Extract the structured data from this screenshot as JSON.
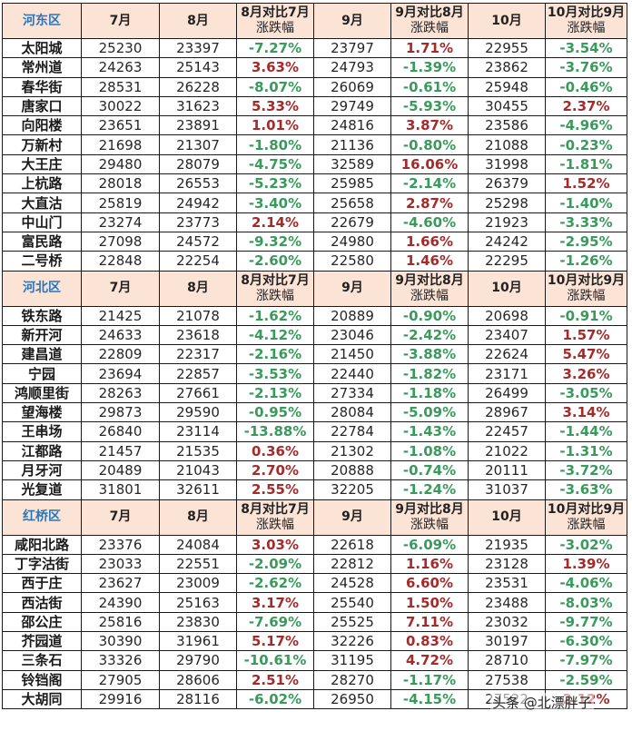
{
  "colors": {
    "header_bg": "#fbe3d6",
    "district_label": "#2e75b6",
    "up": "#a52a2a",
    "down": "#3a9a5c",
    "border": "#1a1a1a"
  },
  "headers": {
    "jul": "7月",
    "aug": "8月",
    "aug_vs_jul_l1": "8月对比7月",
    "aug_vs_jul_l2": "涨跌幅",
    "sep": "9月",
    "sep_vs_aug_l1": "9月对比8月",
    "sep_vs_aug_l2": "涨跌幅",
    "oct": "10月",
    "oct_vs_sep_l1": "10月对比9月",
    "oct_vs_sep_l2": "涨跌幅"
  },
  "sections": [
    {
      "district": "河东区",
      "rows": [
        {
          "name": "太阳城",
          "jul": "25230",
          "aug": "23397",
          "aug_pct": "-7.27%",
          "sep": "23797",
          "sep_pct": "1.71%",
          "oct": "22955",
          "oct_pct": "-3.54%"
        },
        {
          "name": "常州道",
          "jul": "24263",
          "aug": "25143",
          "aug_pct": "3.63%",
          "sep": "24793",
          "sep_pct": "-1.39%",
          "oct": "23862",
          "oct_pct": "-3.76%"
        },
        {
          "name": "春华街",
          "jul": "28531",
          "aug": "26228",
          "aug_pct": "-8.07%",
          "sep": "26069",
          "sep_pct": "-0.61%",
          "oct": "25948",
          "oct_pct": "-0.46%"
        },
        {
          "name": "唐家口",
          "jul": "30022",
          "aug": "31623",
          "aug_pct": "5.33%",
          "sep": "29749",
          "sep_pct": "-5.93%",
          "oct": "30455",
          "oct_pct": "2.37%"
        },
        {
          "name": "向阳楼",
          "jul": "23651",
          "aug": "23891",
          "aug_pct": "1.01%",
          "sep": "24816",
          "sep_pct": "3.87%",
          "oct": "23586",
          "oct_pct": "-4.96%"
        },
        {
          "name": "万新村",
          "jul": "21698",
          "aug": "21307",
          "aug_pct": "-1.80%",
          "sep": "21136",
          "sep_pct": "-0.80%",
          "oct": "21088",
          "oct_pct": "-0.23%"
        },
        {
          "name": "大王庄",
          "jul": "29480",
          "aug": "28079",
          "aug_pct": "-4.75%",
          "sep": "32589",
          "sep_pct": "16.06%",
          "oct": "31998",
          "oct_pct": "-1.81%"
        },
        {
          "name": "上杭路",
          "jul": "28018",
          "aug": "26553",
          "aug_pct": "-5.23%",
          "sep": "25985",
          "sep_pct": "-2.14%",
          "oct": "26379",
          "oct_pct": "1.52%"
        },
        {
          "name": "大直沽",
          "jul": "25819",
          "aug": "24942",
          "aug_pct": "-3.40%",
          "sep": "25658",
          "sep_pct": "2.87%",
          "oct": "25298",
          "oct_pct": "-1.40%"
        },
        {
          "name": "中山门",
          "jul": "23274",
          "aug": "23773",
          "aug_pct": "2.14%",
          "sep": "22679",
          "sep_pct": "-4.60%",
          "oct": "21923",
          "oct_pct": "-3.33%"
        },
        {
          "name": "富民路",
          "jul": "27098",
          "aug": "24572",
          "aug_pct": "-9.32%",
          "sep": "24980",
          "sep_pct": "1.66%",
          "oct": "24242",
          "oct_pct": "-2.95%"
        },
        {
          "name": "二号桥",
          "jul": "22848",
          "aug": "22254",
          "aug_pct": "-2.60%",
          "sep": "22580",
          "sep_pct": "1.46%",
          "oct": "22295",
          "oct_pct": "-1.26%"
        }
      ]
    },
    {
      "district": "河北区",
      "rows": [
        {
          "name": "铁东路",
          "jul": "21425",
          "aug": "21078",
          "aug_pct": "-1.62%",
          "sep": "20889",
          "sep_pct": "-0.90%",
          "oct": "20698",
          "oct_pct": "-0.91%"
        },
        {
          "name": "新开河",
          "jul": "24633",
          "aug": "23618",
          "aug_pct": "-4.12%",
          "sep": "23046",
          "sep_pct": "-2.42%",
          "oct": "23407",
          "oct_pct": "1.57%"
        },
        {
          "name": "建昌道",
          "jul": "22809",
          "aug": "22317",
          "aug_pct": "-2.16%",
          "sep": "21450",
          "sep_pct": "-3.88%",
          "oct": "22624",
          "oct_pct": "5.47%"
        },
        {
          "name": "宁园",
          "jul": "23694",
          "aug": "22857",
          "aug_pct": "-3.53%",
          "sep": "22440",
          "sep_pct": "-1.82%",
          "oct": "23171",
          "oct_pct": "3.26%"
        },
        {
          "name": "鸿顺里街",
          "jul": "28263",
          "aug": "27661",
          "aug_pct": "-2.13%",
          "sep": "27334",
          "sep_pct": "-1.18%",
          "oct": "26499",
          "oct_pct": "-3.05%"
        },
        {
          "name": "望海楼",
          "jul": "29873",
          "aug": "29590",
          "aug_pct": "-0.95%",
          "sep": "28084",
          "sep_pct": "-5.09%",
          "oct": "28967",
          "oct_pct": "3.14%"
        },
        {
          "name": "王串场",
          "jul": "26840",
          "aug": "23114",
          "aug_pct": "-13.88%",
          "sep": "22784",
          "sep_pct": "-1.43%",
          "oct": "22457",
          "oct_pct": "-1.44%"
        },
        {
          "name": "江都路",
          "jul": "21457",
          "aug": "21535",
          "aug_pct": "0.36%",
          "sep": "21302",
          "sep_pct": "-1.08%",
          "oct": "21022",
          "oct_pct": "-1.31%"
        },
        {
          "name": "月牙河",
          "jul": "20489",
          "aug": "21043",
          "aug_pct": "2.70%",
          "sep": "20888",
          "sep_pct": "-0.74%",
          "oct": "20111",
          "oct_pct": "-3.72%"
        },
        {
          "name": "光复道",
          "jul": "31801",
          "aug": "32611",
          "aug_pct": "2.55%",
          "sep": "32205",
          "sep_pct": "-1.24%",
          "oct": "31037",
          "oct_pct": "-3.63%"
        }
      ]
    },
    {
      "district": "红桥区",
      "rows": [
        {
          "name": "咸阳北路",
          "jul": "23376",
          "aug": "24084",
          "aug_pct": "3.03%",
          "sep": "22618",
          "sep_pct": "-6.09%",
          "oct": "21935",
          "oct_pct": "-3.02%"
        },
        {
          "name": "丁字沽街",
          "jul": "23033",
          "aug": "22551",
          "aug_pct": "-2.09%",
          "sep": "22812",
          "sep_pct": "1.16%",
          "oct": "23128",
          "oct_pct": "1.39%"
        },
        {
          "name": "西于庄",
          "jul": "23627",
          "aug": "23009",
          "aug_pct": "-2.62%",
          "sep": "24528",
          "sep_pct": "6.60%",
          "oct": "23531",
          "oct_pct": "-4.06%"
        },
        {
          "name": "西沽街",
          "jul": "24390",
          "aug": "25163",
          "aug_pct": "3.17%",
          "sep": "25540",
          "sep_pct": "1.50%",
          "oct": "23488",
          "oct_pct": "-8.03%"
        },
        {
          "name": "邵公庄",
          "jul": "25816",
          "aug": "23830",
          "aug_pct": "-7.69%",
          "sep": "25525",
          "sep_pct": "7.11%",
          "oct": "23032",
          "oct_pct": "-9.77%"
        },
        {
          "name": "芥园道",
          "jul": "30390",
          "aug": "31961",
          "aug_pct": "5.17%",
          "sep": "32226",
          "sep_pct": "0.83%",
          "oct": "30197",
          "oct_pct": "-6.30%"
        },
        {
          "name": "三条石",
          "jul": "33326",
          "aug": "29790",
          "aug_pct": "-10.61%",
          "sep": "31195",
          "sep_pct": "4.72%",
          "oct": "28710",
          "oct_pct": "-7.97%"
        },
        {
          "name": "铃铛阁",
          "jul": "27905",
          "aug": "28606",
          "aug_pct": "2.51%",
          "sep": "28270",
          "sep_pct": "-1.17%",
          "oct": "27538",
          "oct_pct": "-2.59%"
        },
        {
          "name": "大胡同",
          "jul": "29916",
          "aug": "28116",
          "aug_pct": "-6.02%",
          "sep": "26950",
          "sep_pct": "-4.15%",
          "oct": "27522",
          "oct_pct": "2.12%"
        }
      ]
    }
  ],
  "watermark": "头条 @北漂胖子"
}
